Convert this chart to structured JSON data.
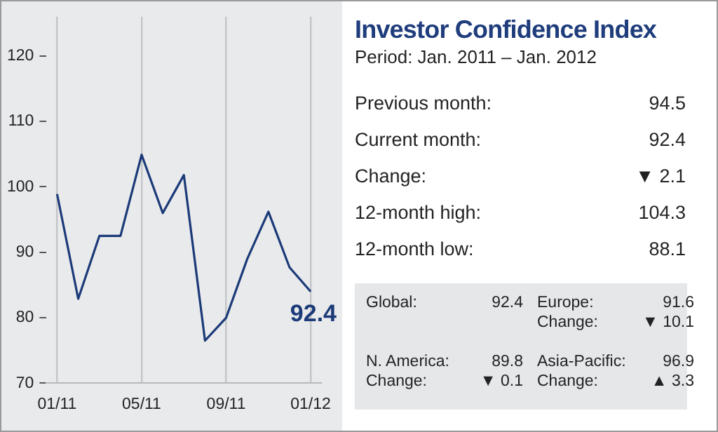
{
  "chart_data": [
    {
      "type": "line",
      "categories": [
        "01/11",
        null,
        null,
        null,
        "05/11",
        null,
        null,
        null,
        "09/11",
        null,
        null,
        null,
        "01/12"
      ],
      "series": [
        {
          "color": "#1b3a78",
          "values": [
            98.9,
            82.9,
            92.5,
            92.5,
            104.9,
            96.0,
            101.8,
            76.5,
            80.0,
            89.0,
            96.2,
            87.7,
            84.0
          ]
        }
      ],
      "ylim": [
        70,
        126
      ],
      "yticks": [
        70,
        80,
        90,
        100,
        110,
        120
      ],
      "grid": "x",
      "legend": false,
      "marker": "none",
      "line_style": "solid",
      "annotations": [
        "92.4"
      ]
    },
    {
      "type": "other",
      "title": "Investor Confidence Index",
      "subtitle": "Period: Jan. 2011 – Jan. 2012",
      "annotations": [
        "Previous month:",
        "94.5",
        "Current month:",
        "92.4",
        "Change:",
        "▼ 2.1",
        "12-month high:",
        "104.3",
        "12-month low:",
        "88.1",
        "Global:",
        "92.4",
        "Europe:",
        "91.6",
        "Change:",
        "▼ 10.1",
        "N. America:",
        "89.8",
        "Change:",
        "▼ 0.1",
        "Asia-Pacific:",
        "96.9",
        "Change:",
        "▲ 3.3"
      ]
    }
  ]
}
